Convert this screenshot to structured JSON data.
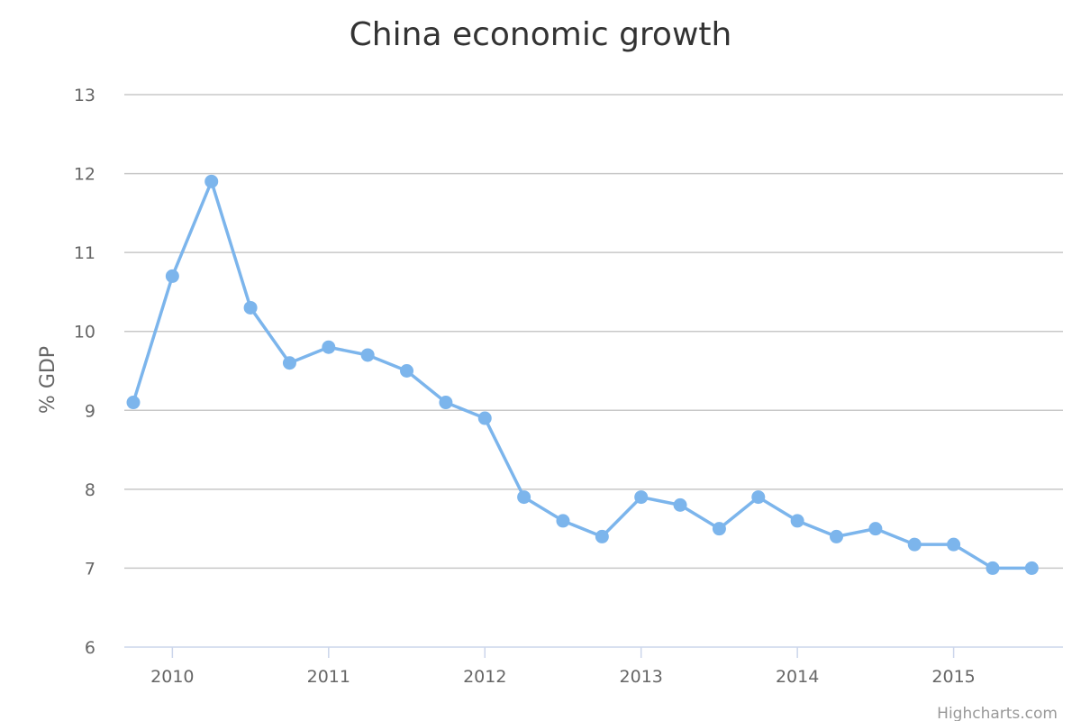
{
  "chart_data": {
    "type": "line",
    "title": "China economic growth",
    "xlabel": "",
    "ylabel": "% GDP",
    "ylim": [
      6,
      13
    ],
    "y_ticks": [
      6,
      7,
      8,
      9,
      10,
      11,
      12,
      13
    ],
    "x_ticks": [
      2010,
      2011,
      2012,
      2013,
      2014,
      2015
    ],
    "xlim": [
      2009.75,
      2015.625
    ],
    "grid": true,
    "legend": "none",
    "series": [
      {
        "color": "#7cb5ec",
        "x": [
          2009.75,
          2010.0,
          2010.25,
          2010.5,
          2010.75,
          2011.0,
          2011.25,
          2011.5,
          2011.75,
          2012.0,
          2012.25,
          2012.5,
          2012.75,
          2013.0,
          2013.25,
          2013.5,
          2013.75,
          2014.0,
          2014.25,
          2014.5,
          2014.75,
          2015.0,
          2015.25,
          2015.5
        ],
        "values": [
          9.1,
          10.7,
          11.9,
          10.3,
          9.6,
          9.8,
          9.7,
          9.5,
          9.1,
          8.9,
          7.9,
          7.6,
          7.4,
          7.9,
          7.8,
          7.5,
          7.9,
          7.6,
          7.4,
          7.5,
          7.3,
          7.3,
          7.0,
          7.0
        ]
      }
    ]
  },
  "credits": "Highcharts.com"
}
